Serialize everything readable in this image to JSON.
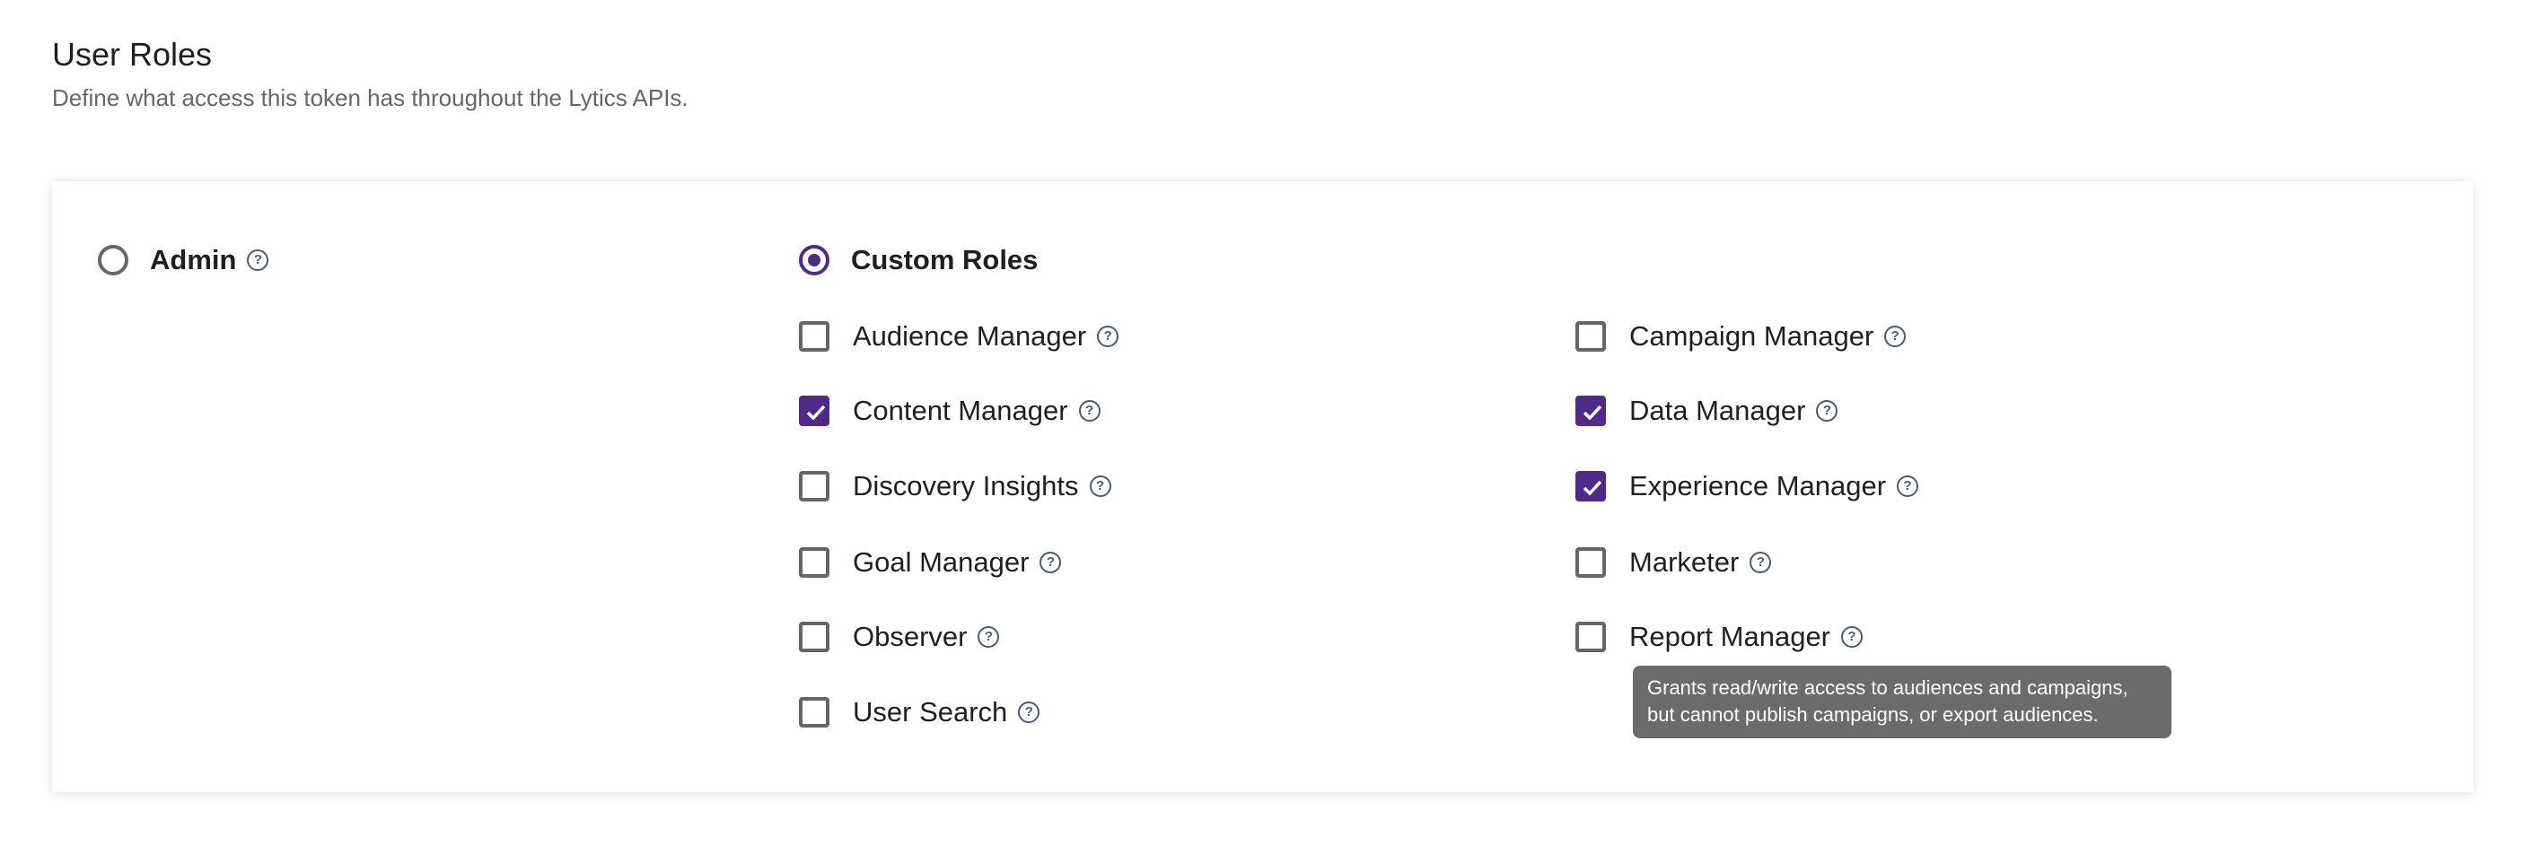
{
  "header": {
    "title": "User Roles",
    "subtitle": "Define what access this token has throughout the Lytics APIs."
  },
  "mode": {
    "admin": {
      "label": "Admin",
      "selected": false,
      "icon": "help-circle-icon"
    },
    "custom": {
      "label": "Custom Roles",
      "selected": true
    }
  },
  "roles": [
    {
      "label": "Audience Manager",
      "checked": false
    },
    {
      "label": "Campaign Manager",
      "checked": false
    },
    {
      "label": "Content Manager",
      "checked": true
    },
    {
      "label": "Data Manager",
      "checked": true
    },
    {
      "label": "Discovery Insights",
      "checked": false
    },
    {
      "label": "Experience Manager",
      "checked": true
    },
    {
      "label": "Goal Manager",
      "checked": false
    },
    {
      "label": "Marketer",
      "checked": false
    },
    {
      "label": "Observer",
      "checked": false
    },
    {
      "label": "Report Manager",
      "checked": false
    },
    {
      "label": "User Search",
      "checked": false
    }
  ],
  "tooltip": {
    "line1": "Grants read/write access to audiences and campaigns,",
    "line2": "but cannot publish campaigns, or export audiences."
  },
  "colors": {
    "accent": "#4f2a87",
    "tooltip_bg": "#6b6b6b"
  }
}
